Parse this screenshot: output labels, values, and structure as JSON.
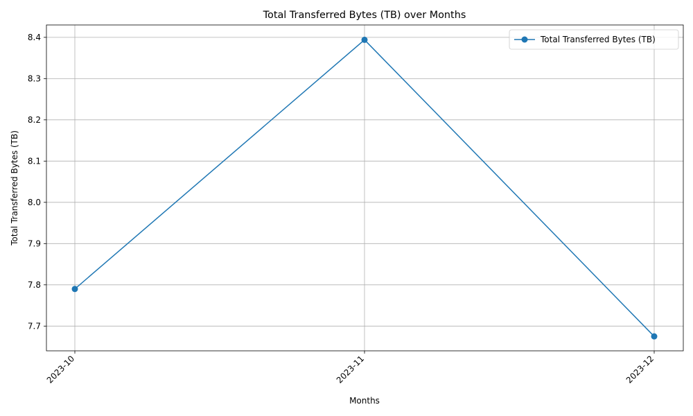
{
  "chart_data": {
    "type": "line",
    "title": "Total Transferred Bytes (TB) over Months",
    "xlabel": "Months",
    "ylabel": "Total Transferred Bytes (TB)",
    "categories": [
      "2023-10",
      "2023-11",
      "2023-12"
    ],
    "series": [
      {
        "name": "Total Transferred Bytes (TB)",
        "values": [
          7.79,
          8.394,
          7.675
        ],
        "color": "#1f77b4",
        "marker": "circle"
      }
    ],
    "ylim": [
      7.64,
      8.43
    ],
    "yticks": [
      "7.7",
      "7.8",
      "7.9",
      "8.0",
      "8.1",
      "8.2",
      "8.3",
      "8.4"
    ],
    "grid": true,
    "legend_position": "top-right"
  }
}
